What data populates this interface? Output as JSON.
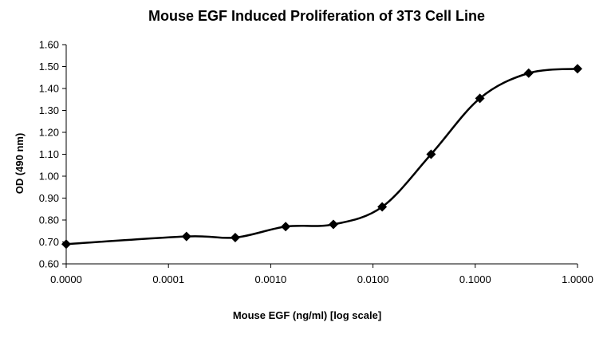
{
  "chart_data": {
    "type": "line",
    "title": "Mouse EGF Induced Proliferation of 3T3 Cell Line",
    "xlabel": "Mouse EGF (ng/ml) [log scale]",
    "ylabel": "OD (490 nm)",
    "x_scale": "log",
    "x_tick_labels": [
      "0.0000",
      "0.0001",
      "0.0010",
      "0.0100",
      "0.1000",
      "1.0000"
    ],
    "x_tick_values": [
      1e-05,
      0.0001,
      0.001,
      0.01,
      0.1,
      1
    ],
    "xlim": [
      1e-05,
      1
    ],
    "y_tick_labels": [
      "0.60",
      "0.70",
      "0.80",
      "0.90",
      "1.00",
      "1.10",
      "1.20",
      "1.30",
      "1.40",
      "1.50",
      "1.60"
    ],
    "ylim": [
      0.6,
      1.6
    ],
    "grid": false,
    "legend": "none",
    "marker": "diamond",
    "line_color": "#000000",
    "series": [
      {
        "x": [
          1e-05,
          0.00015,
          0.00045,
          0.0014,
          0.0041,
          0.0123,
          0.037,
          0.111,
          0.333,
          1.0
        ],
        "y": [
          0.69,
          0.725,
          0.72,
          0.77,
          0.78,
          0.86,
          1.1,
          1.355,
          1.47,
          1.49
        ]
      }
    ]
  }
}
